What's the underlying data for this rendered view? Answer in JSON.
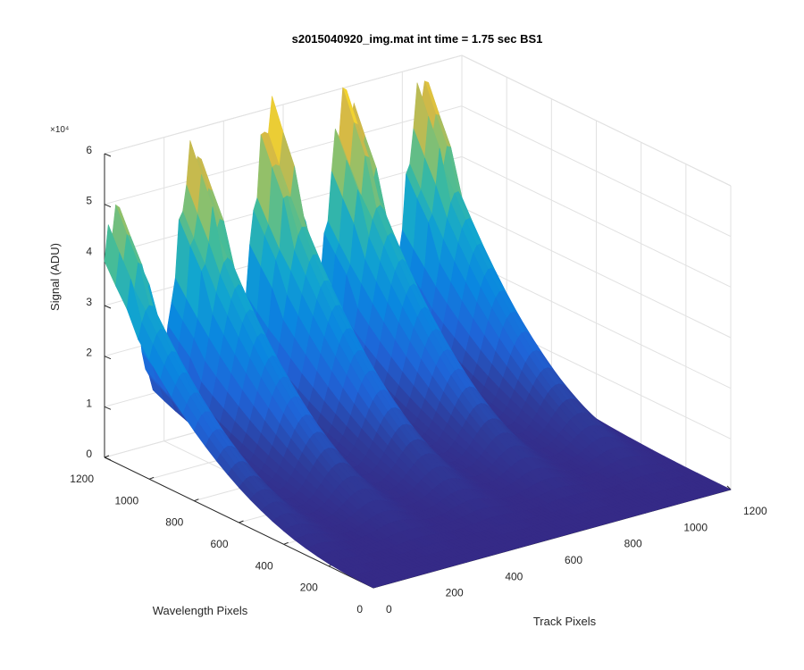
{
  "chart_data": {
    "type": "surface",
    "title": "s2015040920_img.mat int time = 1.75 sec   BS1",
    "xlabel": "Track Pixels",
    "ylabel": "Wavelength Pixels",
    "zlabel": "Signal (ADU)",
    "z_multiplier": "×10⁴",
    "xlim": [
      0,
      1200
    ],
    "ylim": [
      0,
      1200
    ],
    "zlim": [
      0,
      60000
    ],
    "x_ticks": [
      "0",
      "200",
      "400",
      "600",
      "800",
      "1000",
      "1200"
    ],
    "y_ticks": [
      "0",
      "200",
      "400",
      "600",
      "800",
      "1000",
      "1200"
    ],
    "z_ticks": [
      "0",
      "1",
      "2",
      "3",
      "4",
      "5",
      "6"
    ],
    "grid": true,
    "colormap": "parula",
    "colors": {
      "low": "#352a87",
      "mid": "#0fadd0",
      "high": "#f9fb0e"
    },
    "series": [
      {
        "track_center": 40,
        "peak_signal": 45000
      },
      {
        "track_center": 300,
        "peak_signal": 52000
      },
      {
        "track_center": 555,
        "peak_signal": 55000
      },
      {
        "track_center": 810,
        "peak_signal": 55000
      },
      {
        "track_center": 1070,
        "peak_signal": 53000
      }
    ]
  }
}
